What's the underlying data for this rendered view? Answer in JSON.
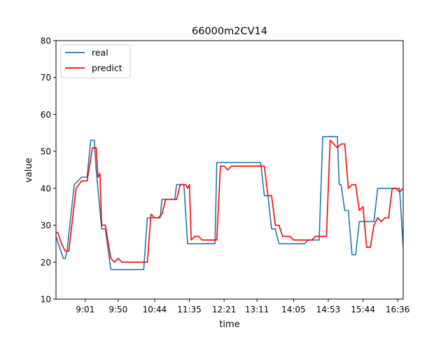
{
  "chart_data": {
    "type": "line",
    "title": "66000m2CV14",
    "xlabel": "time",
    "ylabel": "value",
    "ylim": [
      10,
      80
    ],
    "yticks": [
      10,
      20,
      30,
      40,
      50,
      60,
      70,
      80
    ],
    "xlim": [
      0,
      95
    ],
    "xticks": [
      {
        "x": 8,
        "label": "9:01"
      },
      {
        "x": 17,
        "label": "9:50"
      },
      {
        "x": 27,
        "label": "10:44"
      },
      {
        "x": 36.5,
        "label": "11:35"
      },
      {
        "x": 46,
        "label": "12:21"
      },
      {
        "x": 55,
        "label": "13:11"
      },
      {
        "x": 65,
        "label": "14:05"
      },
      {
        "x": 74.5,
        "label": "14:53"
      },
      {
        "x": 84,
        "label": "15:44"
      },
      {
        "x": 93.5,
        "label": "16:36"
      }
    ],
    "legend": {
      "position": "top-left"
    },
    "series": [
      {
        "name": "real",
        "color": "#1f77b4",
        "points": [
          [
            0,
            27
          ],
          [
            2,
            21
          ],
          [
            2.5,
            21
          ],
          [
            3,
            23
          ],
          [
            5,
            41
          ],
          [
            7,
            43
          ],
          [
            8.5,
            43
          ],
          [
            9.5,
            53
          ],
          [
            10.5,
            53
          ],
          [
            11,
            45
          ],
          [
            12.5,
            29
          ],
          [
            13.5,
            29
          ],
          [
            15,
            18
          ],
          [
            24,
            18
          ],
          [
            25,
            32
          ],
          [
            28.5,
            32
          ],
          [
            29,
            37
          ],
          [
            32.5,
            37
          ],
          [
            33,
            41
          ],
          [
            35,
            41
          ],
          [
            36,
            25
          ],
          [
            43.5,
            25
          ],
          [
            44,
            47
          ],
          [
            56,
            47
          ],
          [
            57,
            38
          ],
          [
            58,
            38
          ],
          [
            59,
            29
          ],
          [
            60,
            29
          ],
          [
            61,
            25
          ],
          [
            68,
            25
          ],
          [
            69,
            26
          ],
          [
            72,
            26
          ],
          [
            73,
            54
          ],
          [
            77,
            54
          ],
          [
            77.5,
            41
          ],
          [
            78,
            41
          ],
          [
            79,
            34
          ],
          [
            80,
            34
          ],
          [
            81,
            22
          ],
          [
            82,
            22
          ],
          [
            83,
            31
          ],
          [
            87,
            31
          ],
          [
            88,
            40
          ],
          [
            94,
            40
          ],
          [
            95,
            24
          ]
        ]
      },
      {
        "name": "predict",
        "color": "#ff0000",
        "points": [
          [
            0,
            28
          ],
          [
            0.5,
            28
          ],
          [
            1.5,
            25
          ],
          [
            2.5,
            23
          ],
          [
            3.5,
            23
          ],
          [
            5.5,
            40
          ],
          [
            7,
            42
          ],
          [
            8.5,
            42
          ],
          [
            10,
            51
          ],
          [
            11,
            51
          ],
          [
            11.5,
            43
          ],
          [
            12,
            44
          ],
          [
            12.5,
            30
          ],
          [
            13.5,
            30
          ],
          [
            15,
            21
          ],
          [
            16,
            20
          ],
          [
            17,
            21
          ],
          [
            18,
            20
          ],
          [
            25,
            20
          ],
          [
            26,
            33
          ],
          [
            27,
            32
          ],
          [
            28,
            32
          ],
          [
            29,
            33
          ],
          [
            30,
            37
          ],
          [
            33,
            37
          ],
          [
            34,
            41
          ],
          [
            35.5,
            41
          ],
          [
            36,
            40
          ],
          [
            36.5,
            41
          ],
          [
            37,
            26
          ],
          [
            38,
            27
          ],
          [
            39,
            27
          ],
          [
            40,
            26
          ],
          [
            44,
            26
          ],
          [
            45,
            46
          ],
          [
            46,
            46
          ],
          [
            47,
            45
          ],
          [
            48,
            46
          ],
          [
            57,
            46
          ],
          [
            58,
            38
          ],
          [
            59,
            38
          ],
          [
            60,
            30
          ],
          [
            61,
            30
          ],
          [
            62,
            27
          ],
          [
            64,
            27
          ],
          [
            65,
            26
          ],
          [
            70,
            26
          ],
          [
            71,
            27
          ],
          [
            74,
            27
          ],
          [
            75,
            53
          ],
          [
            77,
            51
          ],
          [
            78,
            52
          ],
          [
            79,
            52
          ],
          [
            80,
            40
          ],
          [
            81,
            41
          ],
          [
            82,
            41
          ],
          [
            83,
            34
          ],
          [
            84,
            35
          ],
          [
            85,
            24
          ],
          [
            86,
            24
          ],
          [
            87,
            30
          ],
          [
            88,
            32
          ],
          [
            89,
            31
          ],
          [
            90,
            32
          ],
          [
            91,
            32
          ],
          [
            92,
            40
          ],
          [
            93,
            40
          ],
          [
            94,
            39
          ],
          [
            95,
            40
          ],
          [
            98,
            40
          ]
        ]
      }
    ]
  }
}
